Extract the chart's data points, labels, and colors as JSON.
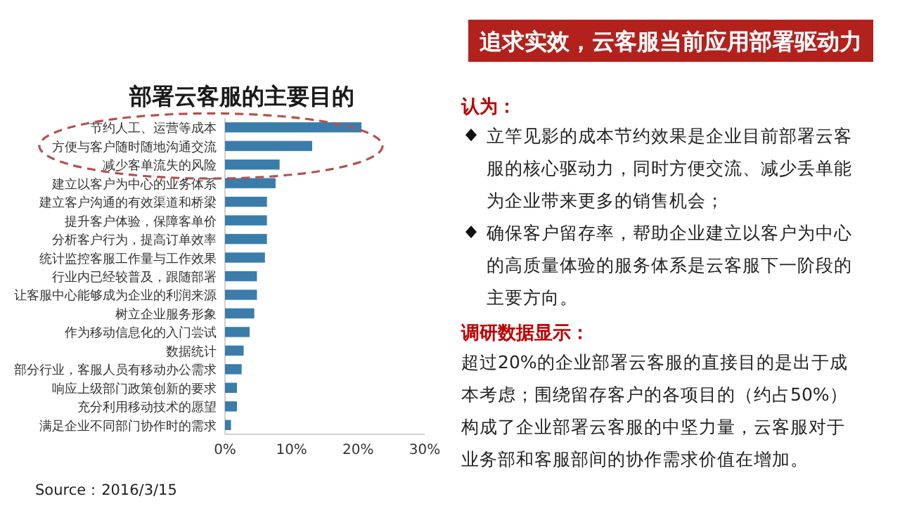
{
  "chart_data": [
    {
      "type": "bar",
      "orientation": "horizontal",
      "title": "部署云客服的主要目的",
      "categories": [
        "节约人工、运营等成本",
        "方便与客户随时随地沟通交流",
        "减少客单流失的风险",
        "建立以客户为中心的业务体系",
        "建立客户沟通的有效渠道和桥梁",
        "提升客户体验，保障客单价",
        "分析客户行为，提高订单效率",
        "统计监控客服工作量与工作效果",
        "行业内已经较普及，跟随部署",
        "让客服中心能够成为企业的利润来源",
        "树立企业服务形象",
        "作为移动信息化的入门尝试",
        "数据统计",
        "部分行业，客服人员有移动办公需求",
        "响应上级部门政策创新的要求",
        "充分利用移动技术的愿望",
        "满足企业不同部门协作时的需求"
      ],
      "values": [
        20.5,
        13.1,
        8.2,
        7.6,
        6.3,
        6.3,
        6.3,
        6.0,
        4.8,
        4.8,
        4.4,
        3.7,
        2.8,
        2.5,
        1.8,
        1.8,
        0.9
      ],
      "color": "#3a7dab",
      "xlim": [
        0,
        30
      ],
      "xticks": [
        {
          "value": 0,
          "label": "0%"
        },
        {
          "value": 10,
          "label": "10%"
        },
        {
          "value": 20,
          "label": "20%"
        },
        {
          "value": 30,
          "label": "30%"
        }
      ],
      "annotations": [
        "Source：2016/3/15"
      ]
    },
    {
      "type": "other",
      "title": "追求实效，云客服当前应用部署驱动力",
      "annotations": [
        "认为：",
        "立竿见影的成本节约效果是企业目前部署云客服的核心驱动力，同时方便交流、减少丢单能为企业带来更多的销售机会；",
        "确保客户留存率，帮助企业建立以客户为中心的高质量体验的服务体系是云客服下一阶段的主要方向。",
        "调研数据显示：",
        "超过20%的企业部署云客服的直接目的是出于成本考虑；围绕留存客户的各项目的（约占50%）构成了企业部署云客服的中坚力量，云客服对于业务部和客服部间的协作需求价值在增加。"
      ]
    }
  ]
}
